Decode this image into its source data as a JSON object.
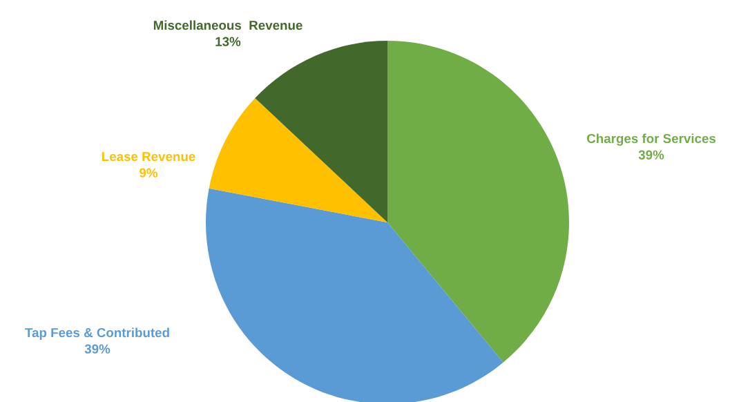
{
  "chart_data": {
    "type": "pie",
    "categories": [
      "Charges for Services",
      "Tap Fees & Contributed",
      "Lease Revenue",
      "Miscellaneous  Revenue"
    ],
    "values": [
      39,
      39,
      9,
      13
    ],
    "colors": [
      "#70ad47",
      "#5b9bd5",
      "#ffc000",
      "#43682b"
    ],
    "value_labels": [
      "39%",
      "39%",
      "9%",
      "13%"
    ]
  }
}
